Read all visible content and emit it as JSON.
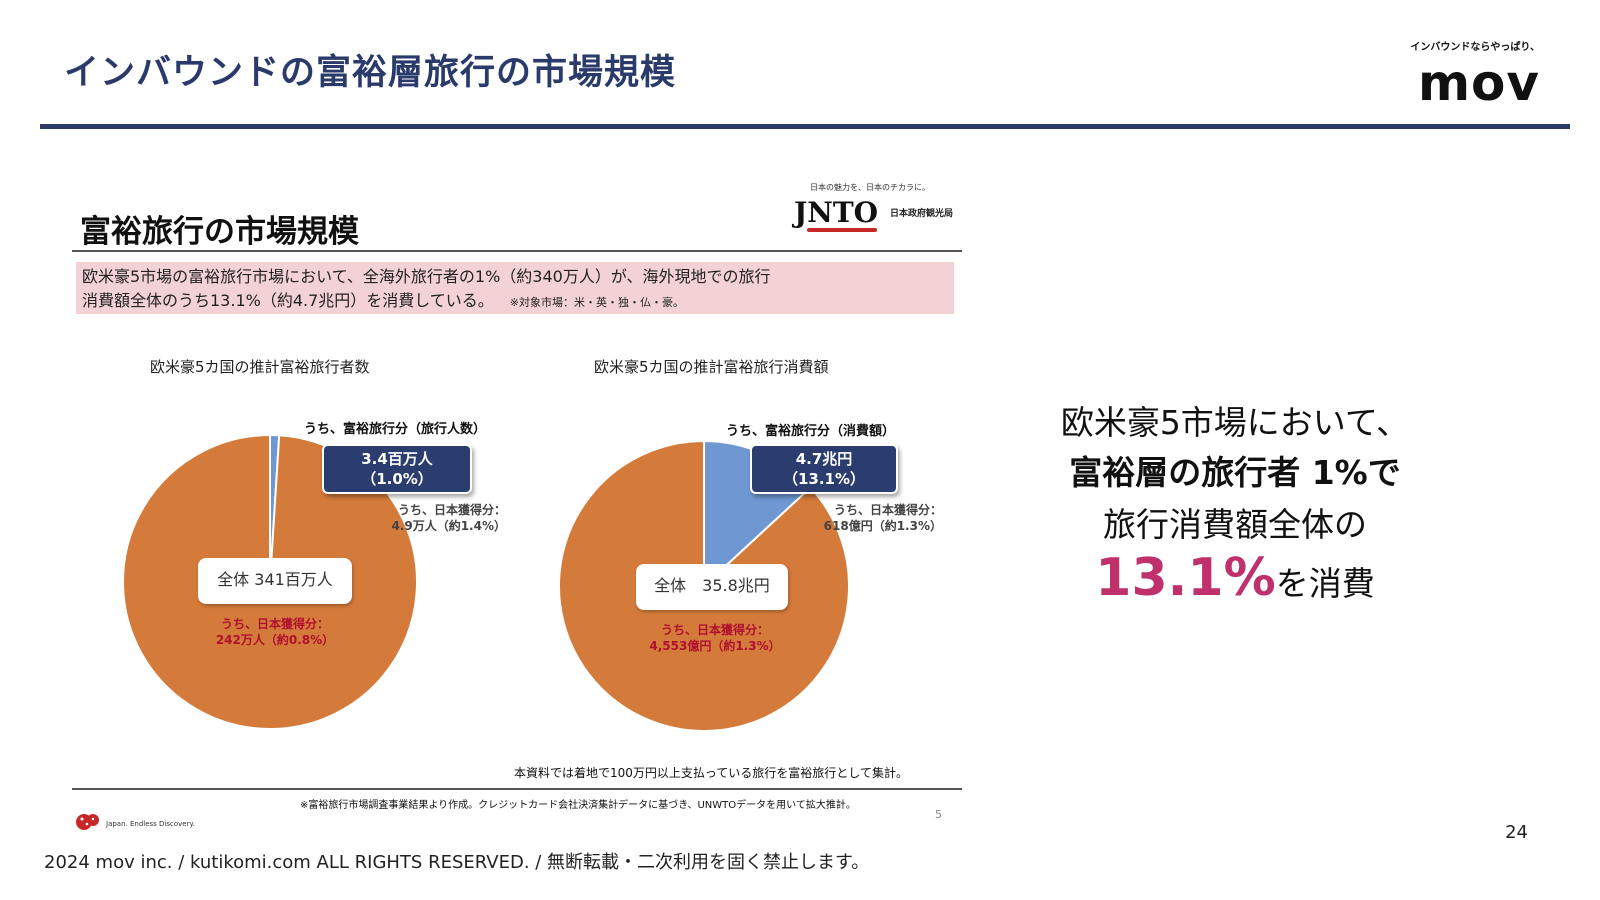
{
  "header": {
    "title": "インバウンドの富裕層旅行の市場規模",
    "logo_tagline": "インバウンドならやっぱり、",
    "logo_word": "mov"
  },
  "embedded_slide": {
    "title": "富裕旅行の市場規模",
    "jnto_tagline": "日本の魅力を、日本のチカラに。",
    "jnto_mark": "JNTO",
    "jnto_agency": "日本政府観光局",
    "summary_line1": "欧米豪5市場の富裕旅行市場において、全海外旅行者の1%（約340万人）が、海外現地での旅行",
    "summary_line2": "消費額全体のうち13.1%（約4.7兆円）を消費している。",
    "summary_note": "※対象市場：米・英・独・仏・豪。",
    "method_note": "本資料では着地で100万円以上支払っている旅行を富裕旅行として集計。",
    "source_note": "※富裕旅行市場調査事業結果より作成。クレジットカード会社決済集計データに基づき、UNWTOデータを用いて拡大推計。",
    "page_number": "5",
    "japan_logo_text": "Japan. Endless Discovery.",
    "pie_left": {
      "caption": "欧米豪5カ国の推計富裕旅行者数",
      "callout_head": "うち、富裕旅行分（旅行人数）",
      "callout_line1": "3.4百万人",
      "callout_line2": "（1.0%）",
      "sub_label_line1": "うち、日本獲得分：",
      "sub_label_line2": "4.9万人（約1.4%）",
      "total": "全体 341百万人",
      "japan_line1": "うち、日本獲得分：",
      "japan_line2": "242万人（約0.8%）"
    },
    "pie_right": {
      "caption": "欧米豪5カ国の推計富裕旅行消費額",
      "callout_head": "うち、富裕旅行分（消費額）",
      "callout_line1": "4.7兆円",
      "callout_line2": "（13.1%）",
      "sub_label_line1": "うち、日本獲得分：",
      "sub_label_line2": "618億円（約1.3%）",
      "total": "全体　35.8兆円",
      "japan_line1": "うち、日本獲得分：",
      "japan_line2": "4,553億円（約1.3%）"
    }
  },
  "message": {
    "line1": "欧米豪5市場において、",
    "line2": "富裕層の旅行者 1%で",
    "line3": "旅行消費額全体の",
    "big": "13.1%",
    "line4_suffix": "を消費"
  },
  "footer": {
    "copyright": "2024 mov inc. / kutikomi.com ALL RIGHTS RESERVED. / 無断転載・二次利用を固く禁止します。",
    "page_number": "24"
  },
  "colors": {
    "slice_main": "#d47a3a",
    "slice_affluent": "#6f98d3",
    "accent": "#c0306a",
    "navy": "#2a3d6e"
  },
  "chart_data": [
    {
      "type": "pie",
      "title": "欧米豪5カ国の推計富裕旅行者数",
      "unit": "百万人",
      "total": 341,
      "slices": [
        {
          "label": "うち、富裕旅行分（旅行人数）",
          "value": 3.4,
          "percent": 1.0
        },
        {
          "label": "",
          "value": 337.6,
          "percent": 99.0
        }
      ]
    },
    {
      "type": "pie",
      "title": "欧米豪5カ国の推計富裕旅行消費額",
      "unit": "兆円",
      "total": 35.8,
      "slices": [
        {
          "label": "うち、富裕旅行分（消費額）",
          "value": 4.7,
          "percent": 13.1
        },
        {
          "label": "",
          "value": 31.1,
          "percent": 86.9
        }
      ]
    }
  ]
}
